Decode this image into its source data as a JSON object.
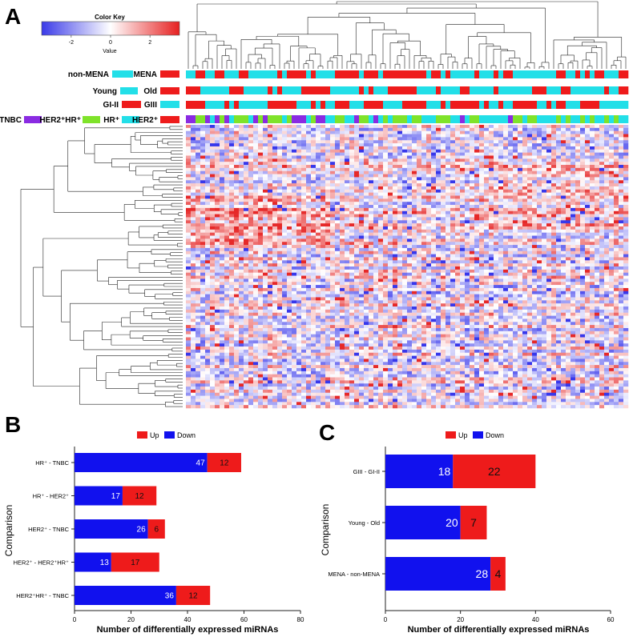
{
  "panels": {
    "a": "A",
    "b": "B",
    "c": "C"
  },
  "color_key": {
    "title": "Color Key",
    "xlabel": "Value",
    "ticks": [
      "-2",
      "0",
      "2"
    ],
    "tick_values": [
      -2,
      0,
      2
    ],
    "range": [
      -3.5,
      3.5
    ],
    "low_color": "#3333e6",
    "mid_color": "#ffffff",
    "high_color": "#e62020"
  },
  "annotations": [
    {
      "left": "non-MENA",
      "left_color": "#22dfe8",
      "right": "MENA",
      "right_color": "#ee1b1b"
    },
    {
      "left": "Young",
      "left_color": "#22dfe8",
      "right": "Old",
      "right_color": "#ee1b1b"
    },
    {
      "left": "GI-II",
      "left_color": "#ee1b1b",
      "right": "GIII",
      "right_color": "#22dfe8"
    }
  ],
  "subtype_legend": [
    {
      "label": "TNBC",
      "color": "#8a2be2"
    },
    {
      "label": "HER2⁺HR⁺",
      "color": "#7fe32a"
    },
    {
      "label": "HR⁺",
      "color": "#22dfe8"
    },
    {
      "label": "HER2⁺",
      "color": "#ee1b1b"
    }
  ],
  "legend": {
    "up": "Up",
    "down": "Down",
    "up_color": "#ee1b1b",
    "down_color": "#1111ee"
  },
  "chart_data": [
    {
      "panel": "B",
      "type": "bar",
      "orientation": "horizontal",
      "stacked": true,
      "categories": [
        "HR⁺ - TNBC",
        "HR⁺ - HER2⁺",
        "HER2⁺ - TNBC",
        "HER2⁺ - HER2⁺HR⁺",
        "HER2⁺HR⁺ - TNBC"
      ],
      "series": [
        {
          "name": "Down",
          "values": [
            47,
            17,
            26,
            13,
            36
          ]
        },
        {
          "name": "Up",
          "values": [
            12,
            12,
            6,
            17,
            12
          ]
        }
      ],
      "xlabel": "Number of differentially expressed miRNAs",
      "ylabel": "Comparison",
      "xlim": [
        0,
        80
      ],
      "xticks": [
        "0",
        "20",
        "40",
        "60",
        "80"
      ],
      "legend_position": "top"
    },
    {
      "panel": "C",
      "type": "bar",
      "orientation": "horizontal",
      "stacked": true,
      "categories": [
        "GIII - GI-II",
        "Young - Old",
        "MENA - non-MENA"
      ],
      "series": [
        {
          "name": "Down",
          "values": [
            18,
            20,
            28
          ]
        },
        {
          "name": "Up",
          "values": [
            22,
            7,
            4
          ]
        }
      ],
      "xlabel": "Number of differentially expressed miRNAs",
      "ylabel": "Comparison",
      "xlim": [
        0,
        60
      ],
      "xticks": [
        "0",
        "20",
        "40",
        "60"
      ],
      "legend_position": "top"
    }
  ]
}
